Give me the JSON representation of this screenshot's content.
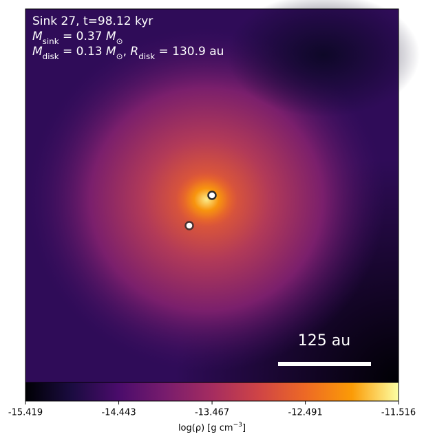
{
  "chart_data": {
    "type": "density-map",
    "annotations": [
      [
        {
          "text": "Sink 27, t=98.12 kyr"
        }
      ],
      [
        {
          "text": "M"
        },
        {
          "sub": "sink"
        },
        {
          "text": " = 0.37 "
        },
        {
          "text": "M"
        },
        {
          "sub": "⊙"
        }
      ],
      [
        {
          "text": "M"
        },
        {
          "sub": "disk"
        },
        {
          "text": " = 0.13 "
        },
        {
          "text": "M"
        },
        {
          "sub": "⊙"
        },
        {
          "text": ", "
        },
        {
          "text": "R"
        },
        {
          "sub": "disk"
        },
        {
          "text": " = 130.9 au"
        }
      ]
    ],
    "scale_bar_label": "125 au",
    "colorbar": {
      "colormap": "inferno",
      "xlim": [
        -15.419,
        -11.516
      ],
      "xticks": [
        -15.419,
        -14.443,
        -13.467,
        -12.491,
        -11.516
      ],
      "label": [
        {
          "text": "log(ρ) [g cm"
        },
        {
          "sup": "−3"
        },
        {
          "text": "]"
        }
      ]
    }
  }
}
